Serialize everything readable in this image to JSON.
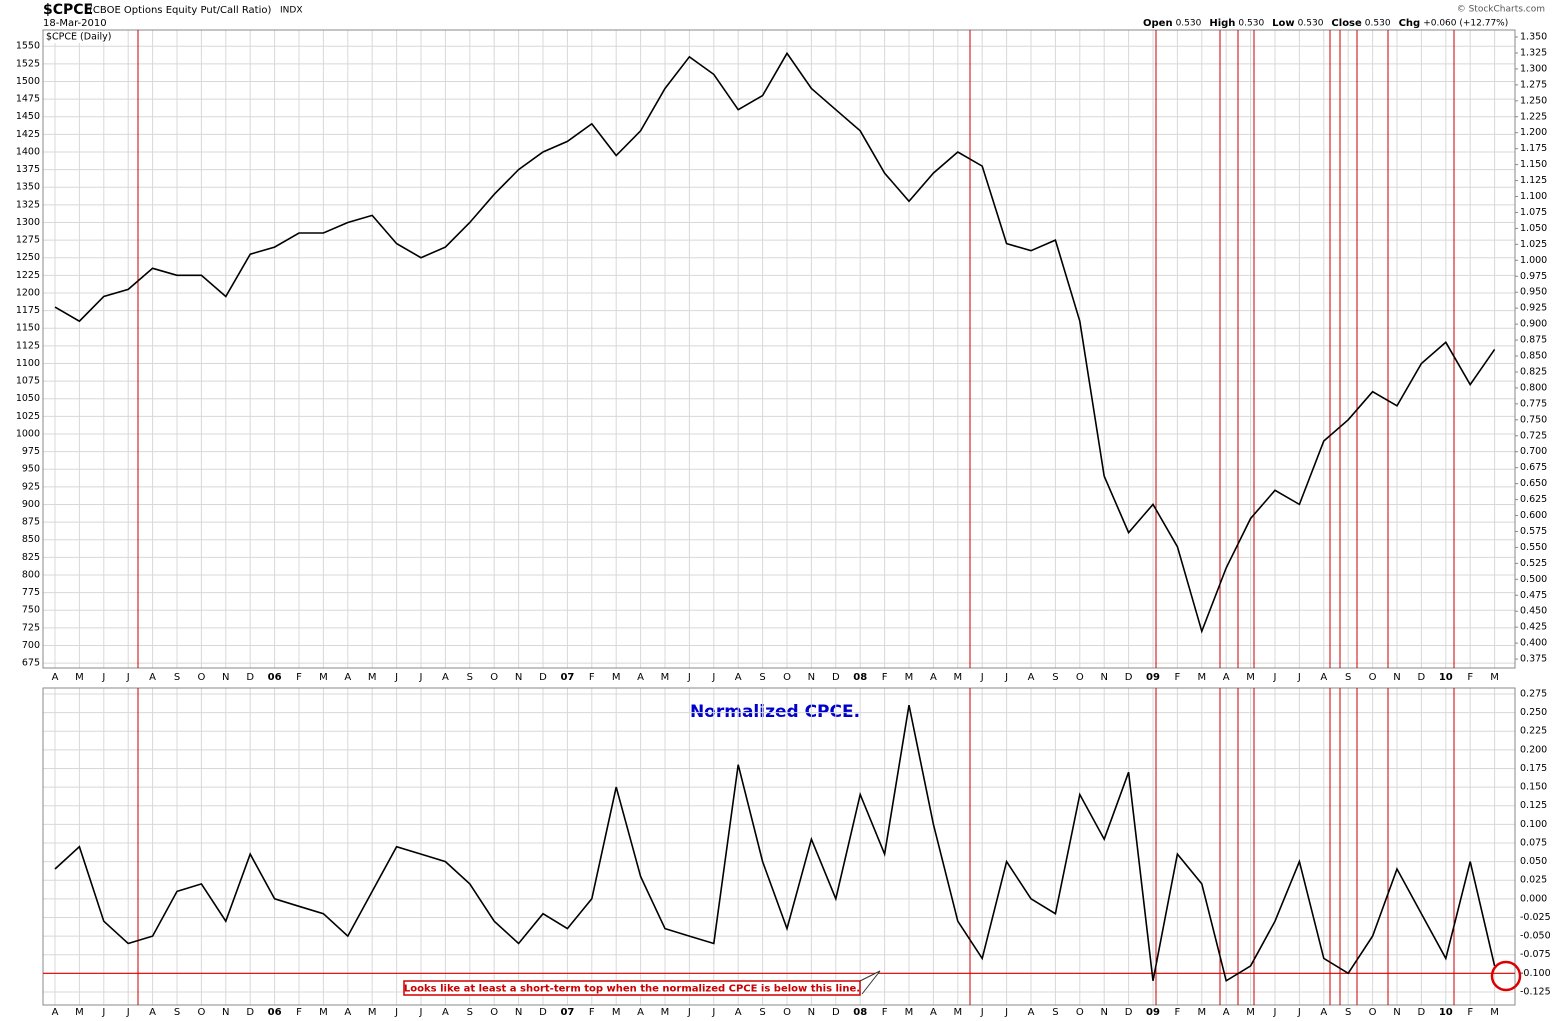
{
  "chart_data": [
    {
      "type": "line",
      "title": "$CPCE",
      "title_note": "(CBOE Options Equity Put/Call Ratio)",
      "exchange": "INDX",
      "date": "18-Mar-2010",
      "quote": [
        {
          "label": "Open",
          "value": "0.530"
        },
        {
          "label": "High",
          "value": "0.530"
        },
        {
          "label": "Low",
          "value": "0.530"
        },
        {
          "label": "Close",
          "value": "0.530"
        },
        {
          "label": "Chg",
          "value": "+0.060 (+12.77%)"
        }
      ],
      "credit": "© StockCharts.com",
      "categories": [
        "A",
        "M",
        "J",
        "J",
        "A",
        "S",
        "O",
        "N",
        "D",
        "06",
        "F",
        "M",
        "A",
        "M",
        "J",
        "J",
        "A",
        "S",
        "O",
        "N",
        "D",
        "07",
        "F",
        "M",
        "A",
        "M",
        "J",
        "J",
        "A",
        "S",
        "O",
        "N",
        "D",
        "08",
        "F",
        "M",
        "A",
        "M",
        "J",
        "J",
        "A",
        "S",
        "O",
        "N",
        "D",
        "09",
        "F",
        "M",
        "A",
        "M",
        "J",
        "J",
        "A",
        "S",
        "O",
        "N",
        "D",
        "10",
        "F",
        "M"
      ],
      "series": [
        {
          "name": "$CPCE (Daily)",
          "color": "#000000",
          "values": [
            1180,
            1160,
            1195,
            1205,
            1235,
            1225,
            1225,
            1195,
            1255,
            1265,
            1285,
            1285,
            1300,
            1310,
            1270,
            1250,
            1265,
            1300,
            1340,
            1375,
            1400,
            1415,
            1440,
            1395,
            1430,
            1490,
            1535,
            1510,
            1460,
            1480,
            1540,
            1490,
            1460,
            1430,
            1370,
            1330,
            1370,
            1400,
            1380,
            1270,
            1260,
            1275,
            1160,
            940,
            860,
            900,
            840,
            720,
            810,
            880,
            920,
            900,
            990,
            1020,
            1060,
            1040,
            1100,
            1130,
            1070,
            1120
          ]
        }
      ],
      "ylim": [
        668,
        1573
      ],
      "yticks": [
        675,
        700,
        725,
        750,
        775,
        800,
        825,
        850,
        875,
        900,
        925,
        950,
        975,
        1000,
        1025,
        1050,
        1075,
        1100,
        1125,
        1150,
        1175,
        1200,
        1225,
        1250,
        1275,
        1300,
        1325,
        1350,
        1375,
        1400,
        1425,
        1450,
        1475,
        1500,
        1525,
        1550
      ],
      "y2lim": [
        0.361,
        1.361
      ],
      "y2ticks": [
        {
          "value": 0.375,
          "label": "0.375"
        },
        {
          "value": 0.4,
          "label": "0.400"
        },
        {
          "value": 0.425,
          "label": "0.425"
        },
        {
          "value": 0.45,
          "label": "0.450"
        },
        {
          "value": 0.475,
          "label": "0.475"
        },
        {
          "value": 0.5,
          "label": "0.500"
        },
        {
          "value": 0.525,
          "label": "0.525"
        },
        {
          "value": 0.55,
          "label": "0.550"
        },
        {
          "value": 0.575,
          "label": "0.575"
        },
        {
          "value": 0.6,
          "label": "0.600"
        },
        {
          "value": 0.625,
          "label": "0.625"
        },
        {
          "value": 0.65,
          "label": "0.650"
        },
        {
          "value": 0.675,
          "label": "0.675"
        },
        {
          "value": 0.7,
          "label": "0.700"
        },
        {
          "value": 0.725,
          "label": "0.725"
        },
        {
          "value": 0.75,
          "label": "0.750"
        },
        {
          "value": 0.775,
          "label": "0.775"
        },
        {
          "value": 0.8,
          "label": "0.800"
        },
        {
          "value": 0.825,
          "label": "0.825"
        },
        {
          "value": 0.85,
          "label": "0.850"
        },
        {
          "value": 0.875,
          "label": "0.875"
        },
        {
          "value": 0.9,
          "label": "0.900"
        },
        {
          "value": 0.925,
          "label": "0.925"
        },
        {
          "value": 0.95,
          "label": "0.950"
        },
        {
          "value": 0.975,
          "label": "0.975"
        },
        {
          "value": 1.0,
          "label": "1.000"
        },
        {
          "value": 1.025,
          "label": "1.025"
        },
        {
          "value": 1.05,
          "label": "1.050"
        },
        {
          "value": 1.075,
          "label": "1.075"
        },
        {
          "value": 1.1,
          "label": "1.100"
        },
        {
          "value": 1.125,
          "label": "1.125"
        },
        {
          "value": 1.15,
          "label": "1.150"
        },
        {
          "value": 1.175,
          "label": "1.175"
        },
        {
          "value": 1.2,
          "label": "1.200"
        },
        {
          "value": 1.225,
          "label": "1.225"
        },
        {
          "value": 1.25,
          "label": "1.250"
        },
        {
          "value": 1.275,
          "label": "1.275"
        },
        {
          "value": 1.3,
          "label": "1.300"
        },
        {
          "value": 1.325,
          "label": "1.325"
        },
        {
          "value": 1.35,
          "label": "1.350"
        }
      ],
      "grid": true
    },
    {
      "type": "line",
      "annotation": "Normalized CPCE.",
      "note": "Looks like at least a short-term top when the normalized CPCE is below this line.",
      "categories": [
        "A",
        "M",
        "J",
        "J",
        "A",
        "S",
        "O",
        "N",
        "D",
        "06",
        "F",
        "M",
        "A",
        "M",
        "J",
        "J",
        "A",
        "S",
        "O",
        "N",
        "D",
        "07",
        "F",
        "M",
        "A",
        "M",
        "J",
        "J",
        "A",
        "S",
        "O",
        "N",
        "D",
        "08",
        "F",
        "M",
        "A",
        "M",
        "J",
        "J",
        "A",
        "S",
        "O",
        "N",
        "D",
        "09",
        "F",
        "M",
        "A",
        "M",
        "J",
        "J",
        "A",
        "S",
        "O",
        "N",
        "D",
        "10",
        "F",
        "M"
      ],
      "series": [
        {
          "color": "#000000",
          "values": [
            0.04,
            0.07,
            -0.03,
            -0.06,
            -0.05,
            0.01,
            0.02,
            -0.03,
            0.06,
            0.0,
            -0.01,
            -0.02,
            -0.05,
            0.01,
            0.07,
            0.06,
            0.05,
            0.02,
            -0.03,
            -0.06,
            -0.02,
            -0.04,
            0.0,
            0.15,
            0.03,
            -0.04,
            -0.05,
            -0.06,
            0.18,
            0.05,
            -0.04,
            0.08,
            0.0,
            0.14,
            0.06,
            0.26,
            0.1,
            -0.03,
            -0.08,
            0.05,
            0.0,
            -0.02,
            0.14,
            0.08,
            0.17,
            -0.11,
            0.06,
            0.02,
            -0.11,
            -0.09,
            -0.03,
            0.05,
            -0.08,
            -0.1,
            -0.05,
            0.04,
            -0.02,
            -0.08,
            0.05,
            -0.09
          ]
        }
      ],
      "ylim": [
        -0.1425,
        0.283
      ],
      "yticks": [
        {
          "value": -0.125,
          "label": "-0.125"
        },
        {
          "value": -0.1,
          "label": "-0.100"
        },
        {
          "value": -0.075,
          "label": "-0.075"
        },
        {
          "value": -0.05,
          "label": "-0.050"
        },
        {
          "value": -0.025,
          "label": "-0.025"
        },
        {
          "value": 0,
          "label": "0.000"
        },
        {
          "value": 0.025,
          "label": "0.025"
        },
        {
          "value": 0.05,
          "label": "0.050"
        },
        {
          "value": 0.075,
          "label": "0.075"
        },
        {
          "value": 0.1,
          "label": "0.100"
        },
        {
          "value": 0.125,
          "label": "0.125"
        },
        {
          "value": 0.15,
          "label": "0.150"
        },
        {
          "value": 0.175,
          "label": "0.175"
        },
        {
          "value": 0.2,
          "label": "0.200"
        },
        {
          "value": 0.225,
          "label": "0.225"
        },
        {
          "value": 0.25,
          "label": "0.250"
        },
        {
          "value": 0.275,
          "label": "0.275"
        }
      ],
      "threshold": -0.1,
      "threshold_color": "#dd0000",
      "grid": true
    }
  ]
}
